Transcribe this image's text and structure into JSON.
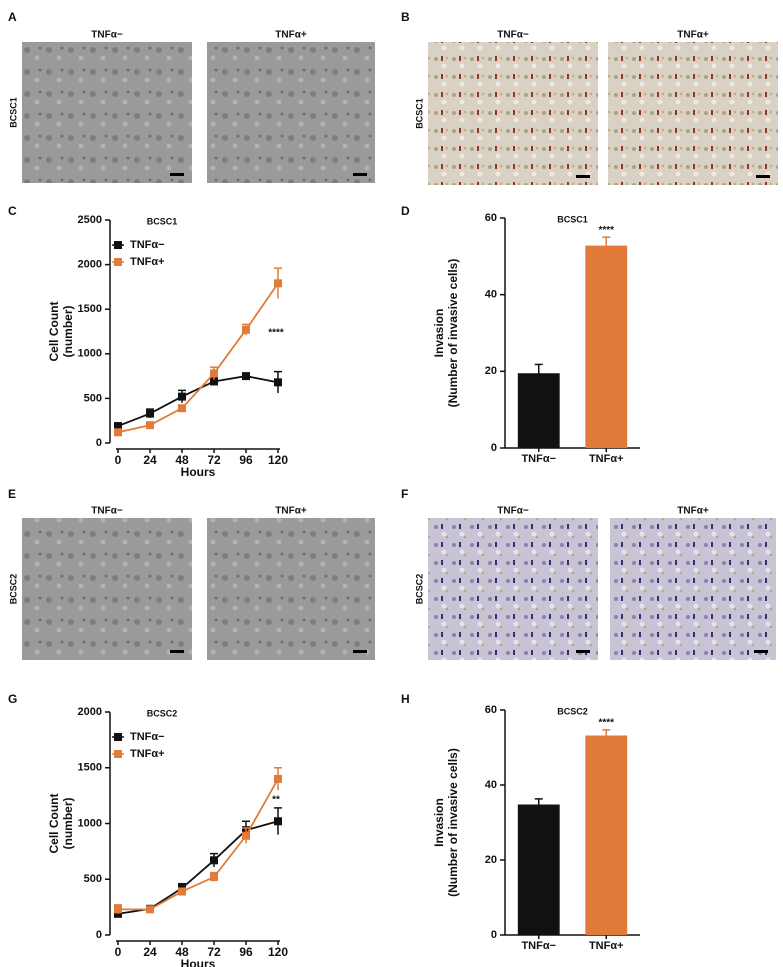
{
  "image_panels": [
    {
      "label": "A",
      "row_label": "BCSC1",
      "titles": [
        "TNFα−",
        "TNFα+"
      ]
    },
    {
      "label": "B",
      "row_label": "BCSC1",
      "titles": [
        "TNFα−",
        "TNFα+"
      ]
    },
    {
      "label": "E",
      "row_label": "BCSC2",
      "titles": [
        "TNFα−",
        "TNFα+"
      ]
    },
    {
      "label": "F",
      "row_label": "BCSC2",
      "titles": [
        "TNFα−",
        "TNFα+"
      ]
    }
  ],
  "chart_data": [
    {
      "type": "line",
      "label": "C",
      "title": "BCSC1",
      "x_label": "Hours",
      "y_label": [
        "Cell Count",
        "(number)"
      ],
      "x": [
        0,
        24,
        48,
        72,
        96,
        120
      ],
      "xlim": [
        0,
        120
      ],
      "xticks": [
        0,
        24,
        48,
        72,
        96,
        120
      ],
      "ylim": [
        0,
        2500
      ],
      "yticks": [
        0,
        500,
        1000,
        1500,
        2000,
        2500
      ],
      "annotation": "****",
      "series": [
        {
          "name": "TNFα−",
          "color": "#111111",
          "values": [
            190,
            330,
            520,
            690,
            750,
            680
          ],
          "errors": [
            30,
            50,
            70,
            40,
            30,
            120
          ]
        },
        {
          "name": "TNFα+",
          "color": "#e07b39",
          "values": [
            120,
            200,
            390,
            780,
            1270,
            1790
          ],
          "errors": [
            20,
            20,
            30,
            70,
            60,
            170
          ]
        }
      ]
    },
    {
      "type": "bar",
      "label": "D",
      "title": "BCSC1",
      "y_label": [
        "Invasion",
        "(Number of invasive cells)"
      ],
      "categories": [
        "TNFα−",
        "TNFα+"
      ],
      "values": [
        19.5,
        52.8
      ],
      "errors": [
        2.3,
        2.2
      ],
      "colors": [
        "#111111",
        "#e07b39"
      ],
      "ylim": [
        0,
        60
      ],
      "yticks": [
        0,
        20,
        40,
        60
      ],
      "annotation": "****"
    },
    {
      "type": "line",
      "label": "G",
      "title": "BCSC2",
      "x_label": "Hours",
      "y_label": [
        "Cell Count",
        "(number)"
      ],
      "x": [
        0,
        24,
        48,
        72,
        96,
        120
      ],
      "xlim": [
        0,
        120
      ],
      "xticks": [
        0,
        24,
        48,
        72,
        96,
        120
      ],
      "ylim": [
        0,
        2000
      ],
      "yticks": [
        0,
        500,
        1000,
        1500,
        2000
      ],
      "annotation": "**",
      "series": [
        {
          "name": "TNFα−",
          "color": "#111111",
          "values": [
            190,
            235,
            420,
            670,
            940,
            1020
          ],
          "errors": [
            30,
            20,
            40,
            60,
            80,
            120
          ]
        },
        {
          "name": "TNFα+",
          "color": "#e07b39",
          "values": [
            230,
            230,
            390,
            520,
            890,
            1400
          ],
          "errors": [
            40,
            20,
            30,
            40,
            70,
            100
          ]
        }
      ]
    },
    {
      "type": "bar",
      "label": "H",
      "title": "BCSC2",
      "y_label": [
        "Invasion",
        "(Number of invasive cells)"
      ],
      "categories": [
        "TNFα−",
        "TNFα+"
      ],
      "values": [
        34.8,
        53.2
      ],
      "errors": [
        1.5,
        1.5
      ],
      "colors": [
        "#111111",
        "#e07b39"
      ],
      "ylim": [
        0,
        60
      ],
      "yticks": [
        0,
        20,
        40,
        60
      ],
      "annotation": "****"
    }
  ]
}
